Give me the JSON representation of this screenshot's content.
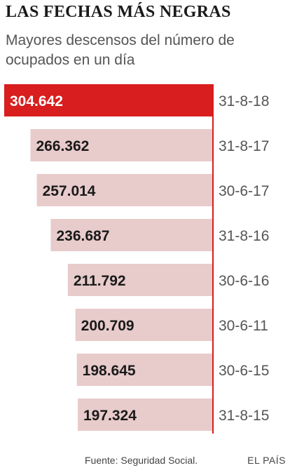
{
  "title": "LAS FECHAS MÁS NEGRAS",
  "subtitle": "Mayores descensos del número de ocupados en un día",
  "source": "Fuente: Seguridad Social.",
  "brand": "EL PAÍS",
  "colors": {
    "highlight": "#d81e1e",
    "bar": "#e8cbcb",
    "axis": "#d81e1e"
  },
  "chart_data": {
    "type": "bar",
    "orientation": "horizontal",
    "categories": [
      "31-8-18",
      "31-8-17",
      "30-6-17",
      "31-8-16",
      "30-6-16",
      "30-6-11",
      "30-6-15",
      "31-8-15"
    ],
    "values": [
      304642,
      266362,
      257014,
      236687,
      211792,
      200709,
      198645,
      197324
    ],
    "value_labels": [
      "304.642",
      "266.362",
      "257.014",
      "236.687",
      "211.792",
      "200.709",
      "198.645",
      "197.324"
    ],
    "highlighted_index": 0,
    "bars_anchored": "right",
    "title": "LAS FECHAS MÁS NEGRAS",
    "subtitle": "Mayores descensos del número de ocupados en un día"
  }
}
